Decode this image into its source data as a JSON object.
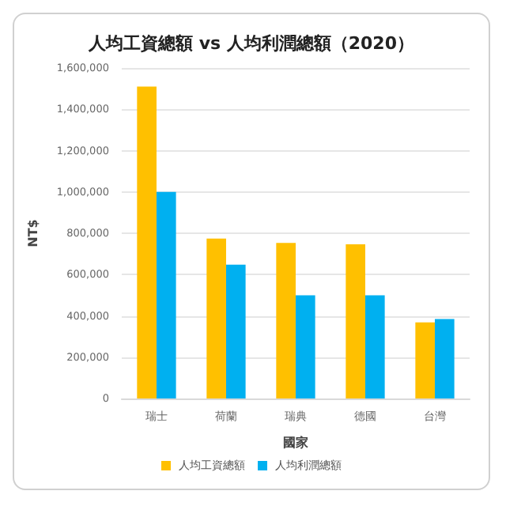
{
  "chart_data": {
    "type": "bar",
    "title": "人均工資總額 vs 人均利潤總額（2020）",
    "xlabel": "國家",
    "ylabel": "NT$",
    "categories": [
      "瑞士",
      "荷蘭",
      "瑞典",
      "德國",
      "台灣"
    ],
    "series": [
      {
        "name": "人均工資總額",
        "color": "#ffc000",
        "values": [
          1510000,
          774000,
          753000,
          746000,
          368000
        ]
      },
      {
        "name": "人均利潤總額",
        "color": "#00b0f0",
        "values": [
          1000000,
          648000,
          500000,
          500000,
          385000
        ]
      }
    ],
    "ylim": [
      0,
      1600000
    ],
    "yticks": [
      0,
      {
        "value": 200000,
        "label": "200,000"
      },
      {
        "value": 400000,
        "label": "400,000"
      },
      {
        "value": 600000,
        "label": "600,000"
      },
      {
        "value": 800000,
        "label": "800,000"
      },
      {
        "value": 1000000,
        "label": "1,000,000"
      },
      {
        "value": 1200000,
        "label": "1,200,000"
      },
      {
        "value": 1400000,
        "label": "1,400,000"
      },
      {
        "value": 1600000,
        "label": "1,600,000"
      }
    ],
    "grid": "y",
    "legend": "bottom"
  }
}
